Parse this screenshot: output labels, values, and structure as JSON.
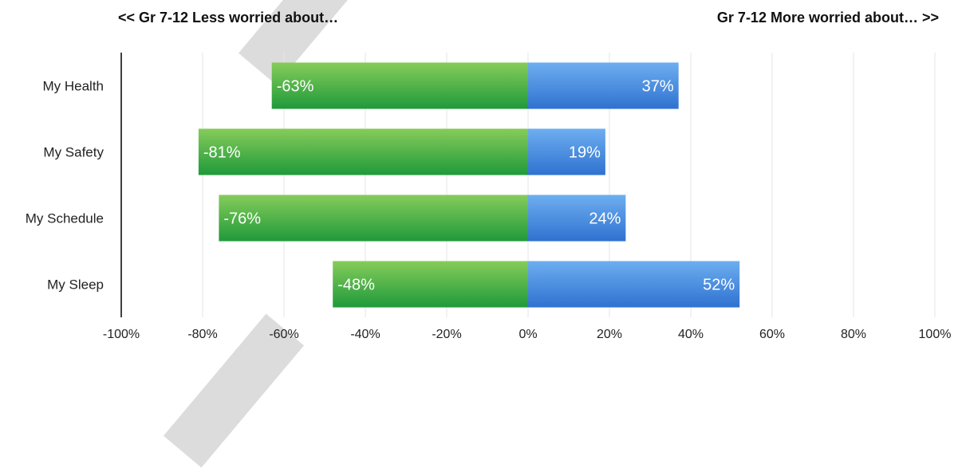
{
  "header": {
    "left": "<< Gr 7-12 Less worried about…",
    "right": "Gr 7-12 More worried about…  >>"
  },
  "chart_data": {
    "type": "bar",
    "orientation": "horizontal",
    "stacked": "diverging",
    "categories": [
      "My Health",
      "My Safety",
      "My Schedule",
      "My Sleep"
    ],
    "series": [
      {
        "values": [
          -63,
          -81,
          -76,
          -48
        ],
        "color": "#3aa83c"
      },
      {
        "values": [
          37,
          19,
          24,
          52
        ],
        "color": "#4a8fe0"
      }
    ],
    "data_labels": [
      [
        "-63%",
        "-81%",
        "-76%",
        "-48%"
      ],
      [
        "37%",
        "19%",
        "24%",
        "52%"
      ]
    ],
    "xlim": [
      -100,
      100
    ],
    "xticks": [
      -100,
      -80,
      -60,
      -40,
      -20,
      0,
      20,
      40,
      60,
      80,
      100
    ],
    "xtick_labels": [
      "-100%",
      "-80%",
      "-60%",
      "-40%",
      "-20%",
      "0%",
      "20%",
      "40%",
      "60%",
      "80%",
      "100%"
    ],
    "grid": true
  }
}
